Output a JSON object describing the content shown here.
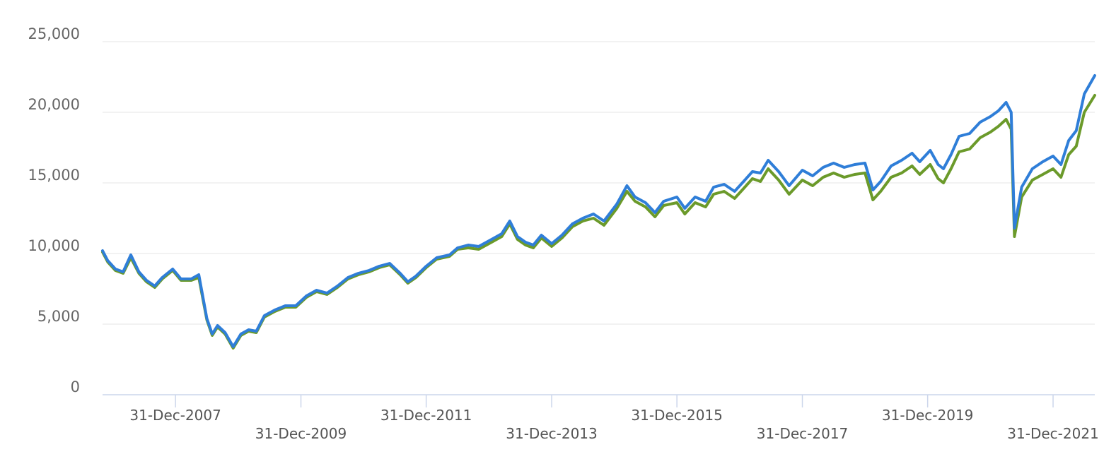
{
  "chart_data": {
    "type": "line",
    "title": "",
    "xlabel": "",
    "ylabel": "",
    "ylim": [
      0,
      25000
    ],
    "xlim": [
      "2006-11-01",
      "2022-08-31"
    ],
    "grid": true,
    "legend": "none",
    "y_ticks": [
      {
        "value": 0,
        "label": "0"
      },
      {
        "value": 5000,
        "label": "5,000"
      },
      {
        "value": 10000,
        "label": "10,000"
      },
      {
        "value": 15000,
        "label": "15,000"
      },
      {
        "value": 20000,
        "label": "20,000"
      },
      {
        "value": 25000,
        "label": "25,000"
      }
    ],
    "x_ticks": [
      {
        "date": "2007-12-31",
        "label": "31-Dec-2007",
        "row": 0
      },
      {
        "date": "2009-12-31",
        "label": "31-Dec-2009",
        "row": 1
      },
      {
        "date": "2011-12-31",
        "label": "31-Dec-2011",
        "row": 0
      },
      {
        "date": "2013-12-31",
        "label": "31-Dec-2013",
        "row": 1
      },
      {
        "date": "2015-12-31",
        "label": "31-Dec-2015",
        "row": 0
      },
      {
        "date": "2017-12-31",
        "label": "31-Dec-2017",
        "row": 1
      },
      {
        "date": "2019-12-31",
        "label": "31-Dec-2019",
        "row": 0
      },
      {
        "date": "2021-12-31",
        "label": "31-Dec-2021",
        "row": 1
      }
    ],
    "series": [
      {
        "color": "#6b9a2a",
        "points": [
          [
            "2006-11-01",
            10100
          ],
          [
            "2006-12-01",
            9400
          ],
          [
            "2007-01-15",
            8800
          ],
          [
            "2007-03-01",
            8600
          ],
          [
            "2007-04-15",
            9700
          ],
          [
            "2007-06-01",
            8600
          ],
          [
            "2007-07-15",
            8000
          ],
          [
            "2007-09-01",
            7600
          ],
          [
            "2007-10-15",
            8200
          ],
          [
            "2007-12-15",
            8800
          ],
          [
            "2008-02-01",
            8100
          ],
          [
            "2008-04-01",
            8100
          ],
          [
            "2008-05-15",
            8300
          ],
          [
            "2008-07-01",
            5300
          ],
          [
            "2008-08-01",
            4200
          ],
          [
            "2008-09-01",
            4800
          ],
          [
            "2008-10-15",
            4300
          ],
          [
            "2008-12-01",
            3300
          ],
          [
            "2009-01-15",
            4200
          ],
          [
            "2009-03-01",
            4500
          ],
          [
            "2009-04-15",
            4400
          ],
          [
            "2009-06-01",
            5500
          ],
          [
            "2009-08-01",
            5900
          ],
          [
            "2009-10-01",
            6200
          ],
          [
            "2009-12-01",
            6200
          ],
          [
            "2010-02-01",
            6900
          ],
          [
            "2010-04-01",
            7300
          ],
          [
            "2010-06-01",
            7100
          ],
          [
            "2010-08-01",
            7600
          ],
          [
            "2010-10-01",
            8200
          ],
          [
            "2010-12-01",
            8500
          ],
          [
            "2011-02-01",
            8700
          ],
          [
            "2011-04-01",
            9000
          ],
          [
            "2011-06-01",
            9200
          ],
          [
            "2011-08-01",
            8500
          ],
          [
            "2011-09-15",
            7900
          ],
          [
            "2011-11-01",
            8300
          ],
          [
            "2011-12-31",
            9000
          ],
          [
            "2012-03-01",
            9600
          ],
          [
            "2012-05-15",
            9800
          ],
          [
            "2012-07-01",
            10300
          ],
          [
            "2012-09-01",
            10400
          ],
          [
            "2012-11-01",
            10300
          ],
          [
            "2013-01-15",
            10800
          ],
          [
            "2013-03-15",
            11200
          ],
          [
            "2013-05-01",
            12100
          ],
          [
            "2013-06-15",
            11000
          ],
          [
            "2013-08-01",
            10600
          ],
          [
            "2013-09-15",
            10400
          ],
          [
            "2013-11-01",
            11100
          ],
          [
            "2013-12-31",
            10500
          ],
          [
            "2014-03-01",
            11100
          ],
          [
            "2014-05-01",
            11900
          ],
          [
            "2014-07-01",
            12300
          ],
          [
            "2014-09-01",
            12500
          ],
          [
            "2014-11-01",
            12000
          ],
          [
            "2015-01-15",
            13200
          ],
          [
            "2015-03-15",
            14400
          ],
          [
            "2015-05-01",
            13700
          ],
          [
            "2015-07-01",
            13300
          ],
          [
            "2015-08-25",
            12600
          ],
          [
            "2015-10-15",
            13400
          ],
          [
            "2015-12-31",
            13600
          ],
          [
            "2016-02-15",
            12800
          ],
          [
            "2016-04-15",
            13600
          ],
          [
            "2016-06-15",
            13300
          ],
          [
            "2016-08-01",
            14200
          ],
          [
            "2016-10-01",
            14400
          ],
          [
            "2016-12-01",
            13900
          ],
          [
            "2017-01-15",
            14500
          ],
          [
            "2017-03-15",
            15300
          ],
          [
            "2017-05-01",
            15100
          ],
          [
            "2017-06-15",
            16000
          ],
          [
            "2017-08-15",
            15200
          ],
          [
            "2017-10-15",
            14200
          ],
          [
            "2017-12-31",
            15200
          ],
          [
            "2018-03-01",
            14800
          ],
          [
            "2018-05-01",
            15400
          ],
          [
            "2018-07-01",
            15700
          ],
          [
            "2018-09-01",
            15400
          ],
          [
            "2018-11-01",
            15600
          ],
          [
            "2018-12-31",
            15700
          ],
          [
            "2019-02-15",
            13800
          ],
          [
            "2019-04-01",
            14400
          ],
          [
            "2019-06-01",
            15400
          ],
          [
            "2019-08-01",
            15700
          ],
          [
            "2019-10-01",
            16200
          ],
          [
            "2019-11-15",
            15600
          ],
          [
            "2020-01-15",
            16300
          ],
          [
            "2020-03-01",
            15300
          ],
          [
            "2020-04-01",
            15000
          ],
          [
            "2020-05-15",
            16000
          ],
          [
            "2020-07-01",
            17200
          ],
          [
            "2020-09-01",
            17400
          ],
          [
            "2020-11-01",
            18200
          ],
          [
            "2020-12-31",
            18600
          ],
          [
            "2021-02-15",
            19000
          ],
          [
            "2021-04-01",
            19500
          ],
          [
            "2021-05-01",
            18800
          ],
          [
            "2021-05-20",
            11200
          ],
          [
            "2021-07-01",
            14000
          ],
          [
            "2021-09-01",
            15200
          ],
          [
            "2021-11-01",
            15600
          ],
          [
            "2021-12-31",
            16000
          ],
          [
            "2022-02-15",
            15400
          ],
          [
            "2022-04-01",
            17000
          ],
          [
            "2022-05-15",
            17600
          ],
          [
            "2022-07-01",
            20000
          ],
          [
            "2022-08-31",
            21200
          ]
        ]
      },
      {
        "color": "#2f7ed8",
        "points": [
          [
            "2006-11-01",
            10200
          ],
          [
            "2006-12-01",
            9500
          ],
          [
            "2007-01-15",
            8900
          ],
          [
            "2007-03-01",
            8700
          ],
          [
            "2007-04-15",
            9900
          ],
          [
            "2007-06-01",
            8700
          ],
          [
            "2007-07-15",
            8100
          ],
          [
            "2007-09-01",
            7700
          ],
          [
            "2007-10-15",
            8300
          ],
          [
            "2007-12-15",
            8900
          ],
          [
            "2008-02-01",
            8200
          ],
          [
            "2008-04-01",
            8200
          ],
          [
            "2008-05-15",
            8500
          ],
          [
            "2008-07-01",
            5400
          ],
          [
            "2008-08-01",
            4300
          ],
          [
            "2008-09-01",
            4900
          ],
          [
            "2008-10-15",
            4400
          ],
          [
            "2008-12-01",
            3400
          ],
          [
            "2009-01-15",
            4300
          ],
          [
            "2009-03-01",
            4600
          ],
          [
            "2009-04-15",
            4500
          ],
          [
            "2009-06-01",
            5600
          ],
          [
            "2009-08-01",
            6000
          ],
          [
            "2009-10-01",
            6300
          ],
          [
            "2009-12-01",
            6300
          ],
          [
            "2010-02-01",
            7000
          ],
          [
            "2010-04-01",
            7400
          ],
          [
            "2010-06-01",
            7200
          ],
          [
            "2010-08-01",
            7700
          ],
          [
            "2010-10-01",
            8300
          ],
          [
            "2010-12-01",
            8600
          ],
          [
            "2011-02-01",
            8800
          ],
          [
            "2011-04-01",
            9100
          ],
          [
            "2011-06-01",
            9300
          ],
          [
            "2011-08-01",
            8600
          ],
          [
            "2011-09-15",
            8000
          ],
          [
            "2011-11-01",
            8400
          ],
          [
            "2011-12-31",
            9100
          ],
          [
            "2012-03-01",
            9700
          ],
          [
            "2012-05-15",
            9900
          ],
          [
            "2012-07-01",
            10400
          ],
          [
            "2012-09-01",
            10600
          ],
          [
            "2012-11-01",
            10500
          ],
          [
            "2013-01-15",
            11000
          ],
          [
            "2013-03-15",
            11400
          ],
          [
            "2013-05-01",
            12300
          ],
          [
            "2013-06-15",
            11200
          ],
          [
            "2013-08-01",
            10800
          ],
          [
            "2013-09-15",
            10600
          ],
          [
            "2013-11-01",
            11300
          ],
          [
            "2013-12-31",
            10700
          ],
          [
            "2014-03-01",
            11300
          ],
          [
            "2014-05-01",
            12100
          ],
          [
            "2014-07-01",
            12500
          ],
          [
            "2014-09-01",
            12800
          ],
          [
            "2014-11-01",
            12300
          ],
          [
            "2015-01-15",
            13500
          ],
          [
            "2015-03-15",
            14800
          ],
          [
            "2015-05-01",
            14000
          ],
          [
            "2015-07-01",
            13600
          ],
          [
            "2015-08-25",
            12900
          ],
          [
            "2015-10-15",
            13700
          ],
          [
            "2015-12-31",
            14000
          ],
          [
            "2016-02-15",
            13200
          ],
          [
            "2016-04-15",
            14000
          ],
          [
            "2016-06-15",
            13700
          ],
          [
            "2016-08-01",
            14700
          ],
          [
            "2016-10-01",
            14900
          ],
          [
            "2016-12-01",
            14400
          ],
          [
            "2017-01-15",
            15000
          ],
          [
            "2017-03-15",
            15800
          ],
          [
            "2017-05-01",
            15700
          ],
          [
            "2017-06-15",
            16600
          ],
          [
            "2017-08-15",
            15800
          ],
          [
            "2017-10-15",
            14800
          ],
          [
            "2017-12-31",
            15900
          ],
          [
            "2018-03-01",
            15500
          ],
          [
            "2018-05-01",
            16100
          ],
          [
            "2018-07-01",
            16400
          ],
          [
            "2018-09-01",
            16100
          ],
          [
            "2018-11-01",
            16300
          ],
          [
            "2018-12-31",
            16400
          ],
          [
            "2019-02-15",
            14500
          ],
          [
            "2019-04-01",
            15100
          ],
          [
            "2019-06-01",
            16200
          ],
          [
            "2019-08-01",
            16600
          ],
          [
            "2019-10-01",
            17100
          ],
          [
            "2019-11-15",
            16500
          ],
          [
            "2020-01-15",
            17300
          ],
          [
            "2020-03-01",
            16300
          ],
          [
            "2020-04-01",
            16000
          ],
          [
            "2020-05-15",
            17000
          ],
          [
            "2020-07-01",
            18300
          ],
          [
            "2020-09-01",
            18500
          ],
          [
            "2020-11-01",
            19300
          ],
          [
            "2020-12-31",
            19700
          ],
          [
            "2021-02-15",
            20100
          ],
          [
            "2021-04-01",
            20700
          ],
          [
            "2021-05-01",
            20000
          ],
          [
            "2021-05-20",
            11800
          ],
          [
            "2021-07-01",
            14700
          ],
          [
            "2021-09-01",
            16000
          ],
          [
            "2021-11-01",
            16500
          ],
          [
            "2021-12-31",
            16900
          ],
          [
            "2022-02-15",
            16300
          ],
          [
            "2022-04-01",
            18000
          ],
          [
            "2022-05-15",
            18700
          ],
          [
            "2022-07-01",
            21300
          ],
          [
            "2022-08-31",
            22600
          ]
        ]
      }
    ]
  }
}
